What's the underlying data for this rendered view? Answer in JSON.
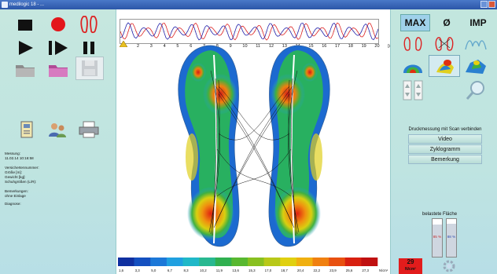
{
  "window": {
    "title": "medilogic 18 - ..."
  },
  "left_panel": {
    "info": {
      "measurement_label": "Messung:",
      "measurement_date": "11.02.14 10:16:58",
      "insured_label": "Versichertennummer:",
      "height_label": "Größe [m]:",
      "weight_label": "Gewicht [kg]:",
      "shoe_size_label": "Schuhgrößen (L/R):",
      "remarks_label": "Bemerkungen:",
      "remarks_value": "ohne Einlage",
      "diagnosis_label": "Diagnose:"
    }
  },
  "timeline": {
    "tick_labels": [
      "2",
      "3",
      "4",
      "5",
      "6",
      "7",
      "8",
      "9",
      "10",
      "11",
      "12",
      "13",
      "14",
      "15",
      "16",
      "17",
      "18",
      "19",
      "20",
      "[s]"
    ]
  },
  "colorbar": {
    "values": [
      "1,6",
      "3,3",
      "5,0",
      "6,7",
      "8,3",
      "10,2",
      "11,9",
      "13,6",
      "15,3",
      "17,0",
      "18,7",
      "20,4",
      "22,2",
      "23,9",
      "25,6",
      "27,3"
    ],
    "unit": "N/cm²",
    "colors": [
      "#1030a0",
      "#1450c0",
      "#1c78d8",
      "#20a0e0",
      "#20b8c8",
      "#28b890",
      "#30b050",
      "#58b830",
      "#88c020",
      "#b8c818",
      "#e0d010",
      "#f0b010",
      "#f08010",
      "#e85010",
      "#d82010",
      "#c01010"
    ]
  },
  "right_panel": {
    "modes": [
      {
        "label": "MAX",
        "active": true
      },
      {
        "label": "Ø",
        "active": false
      },
      {
        "label": "IMP",
        "active": false
      }
    ],
    "scan_title": "Druckmessung mit Scan verbinden",
    "scan_buttons": [
      "Video",
      "Zyklogramm",
      "Bemerkung"
    ],
    "loaded_area_title": "belastete Fläche",
    "loaded_left_pct": "85 %",
    "loaded_right_pct": "88 %",
    "loaded_left_value": 0.85,
    "loaded_right_value": 0.88,
    "max_value": "29",
    "max_unit": "N/cm²"
  }
}
